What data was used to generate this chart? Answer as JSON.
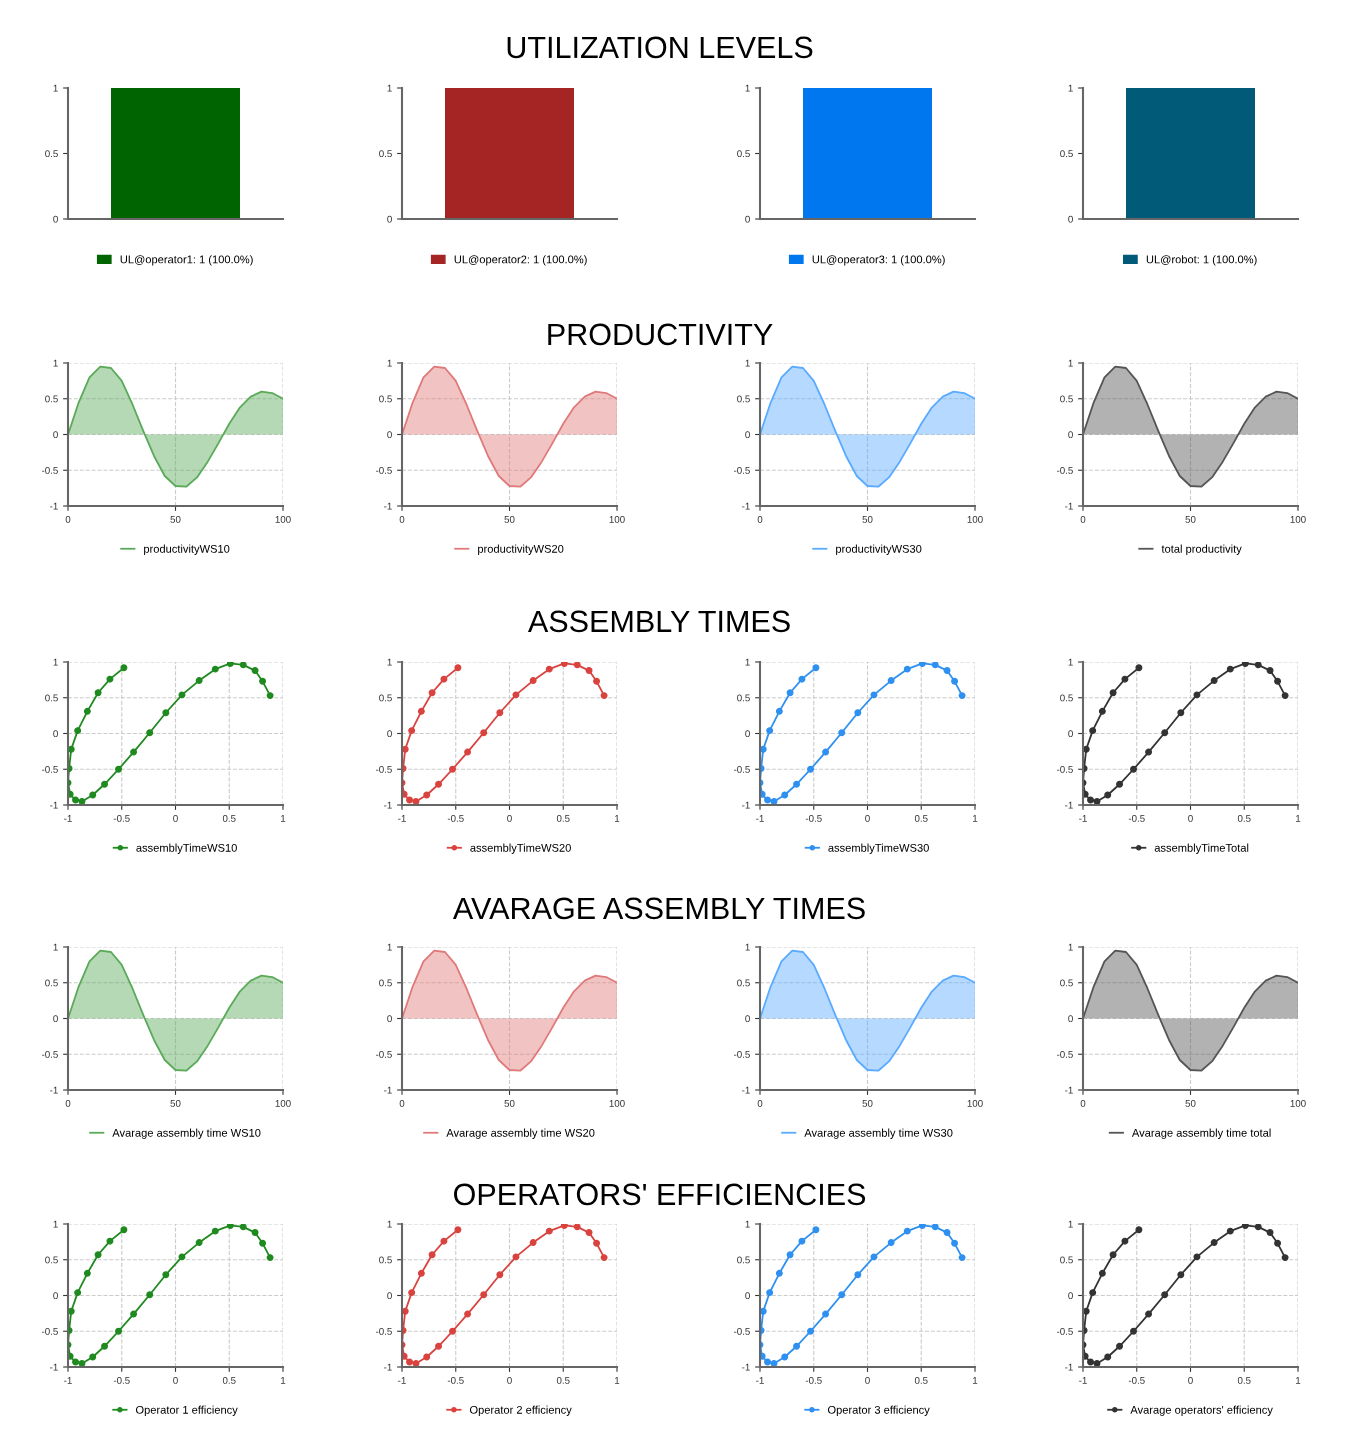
{
  "chart_data": [
    {
      "type": "bar",
      "categories": [
        null
      ],
      "ylim": [
        0,
        1
      ],
      "yticks": [
        0,
        0.5,
        1
      ],
      "grid": false,
      "legend": "bottom",
      "series": [
        {
          "name": "UL@operator1: 1 (100.0%)",
          "color": "#006400",
          "values": [
            1
          ]
        }
      ]
    },
    {
      "type": "bar",
      "categories": [
        null
      ],
      "ylim": [
        0,
        1
      ],
      "yticks": [
        0,
        0.5,
        1
      ],
      "grid": false,
      "legend": "bottom",
      "title": "UTILIZATION LEVELS",
      "series": [
        {
          "name": "UL@operator2: 1 (100.0%)",
          "color": "#a52525",
          "values": [
            1
          ]
        }
      ]
    },
    {
      "type": "bar",
      "categories": [
        null
      ],
      "ylim": [
        0,
        1
      ],
      "yticks": [
        0,
        0.5,
        1
      ],
      "grid": false,
      "legend": "bottom",
      "series": [
        {
          "name": "UL@operator3: 1 (100.0%)",
          "color": "#0077ee",
          "values": [
            1
          ]
        }
      ]
    },
    {
      "type": "bar",
      "categories": [
        null
      ],
      "ylim": [
        0,
        1
      ],
      "yticks": [
        0,
        0.5,
        1
      ],
      "grid": false,
      "legend": "bottom",
      "series": [
        {
          "name": "UL@robot: 1 (100.0%)",
          "color": "#005a78",
          "values": [
            1
          ]
        }
      ]
    },
    {
      "type": "area",
      "xlim": [
        0,
        100
      ],
      "xticks": [
        0,
        50,
        100
      ],
      "ylim": [
        -1,
        1
      ],
      "yticks": [
        -1,
        -0.5,
        0,
        0.5,
        1
      ],
      "grid": true,
      "legend": "bottom",
      "series": [
        {
          "name": "productivityWS10",
          "color": "#5aaa5a",
          "x": [
            0,
            5,
            10,
            15,
            20,
            25,
            30,
            35,
            40,
            45,
            50,
            55,
            60,
            65,
            70,
            75,
            80,
            85,
            90,
            95,
            100
          ],
          "values": [
            0,
            0.45,
            0.8,
            0.95,
            0.93,
            0.75,
            0.42,
            0.05,
            -0.3,
            -0.58,
            -0.72,
            -0.73,
            -0.6,
            -0.38,
            -0.12,
            0.15,
            0.38,
            0.53,
            0.6,
            0.58,
            0.5
          ]
        }
      ]
    },
    {
      "type": "area",
      "xlim": [
        0,
        100
      ],
      "xticks": [
        0,
        50,
        100
      ],
      "ylim": [
        -1,
        1
      ],
      "yticks": [
        -1,
        -0.5,
        0,
        0.5,
        1
      ],
      "grid": true,
      "legend": "bottom",
      "title": "PRODUCTIVITY",
      "series": [
        {
          "name": "productivityWS20",
          "color": "#e07a7a",
          "x": [
            0,
            5,
            10,
            15,
            20,
            25,
            30,
            35,
            40,
            45,
            50,
            55,
            60,
            65,
            70,
            75,
            80,
            85,
            90,
            95,
            100
          ],
          "values": [
            0,
            0.45,
            0.8,
            0.95,
            0.93,
            0.75,
            0.42,
            0.05,
            -0.3,
            -0.58,
            -0.72,
            -0.73,
            -0.6,
            -0.38,
            -0.12,
            0.15,
            0.38,
            0.53,
            0.6,
            0.58,
            0.5
          ]
        }
      ]
    },
    {
      "type": "area",
      "xlim": [
        0,
        100
      ],
      "xticks": [
        0,
        50,
        100
      ],
      "ylim": [
        -1,
        1
      ],
      "yticks": [
        -1,
        -0.5,
        0,
        0.5,
        1
      ],
      "grid": true,
      "legend": "bottom",
      "series": [
        {
          "name": "productivityWS30",
          "color": "#5aaaff",
          "x": [
            0,
            5,
            10,
            15,
            20,
            25,
            30,
            35,
            40,
            45,
            50,
            55,
            60,
            65,
            70,
            75,
            80,
            85,
            90,
            95,
            100
          ],
          "values": [
            0,
            0.45,
            0.8,
            0.95,
            0.93,
            0.75,
            0.42,
            0.05,
            -0.3,
            -0.58,
            -0.72,
            -0.73,
            -0.6,
            -0.38,
            -0.12,
            0.15,
            0.38,
            0.53,
            0.6,
            0.58,
            0.5
          ]
        }
      ]
    },
    {
      "type": "area",
      "xlim": [
        0,
        100
      ],
      "xticks": [
        0,
        50,
        100
      ],
      "ylim": [
        -1,
        1
      ],
      "yticks": [
        -1,
        -0.5,
        0,
        0.5,
        1
      ],
      "grid": true,
      "legend": "bottom",
      "series": [
        {
          "name": "total productivity",
          "color": "#555555",
          "x": [
            0,
            5,
            10,
            15,
            20,
            25,
            30,
            35,
            40,
            45,
            50,
            55,
            60,
            65,
            70,
            75,
            80,
            85,
            90,
            95,
            100
          ],
          "values": [
            0,
            0.45,
            0.8,
            0.95,
            0.93,
            0.75,
            0.42,
            0.05,
            -0.3,
            -0.58,
            -0.72,
            -0.73,
            -0.6,
            -0.38,
            -0.12,
            0.15,
            0.38,
            0.53,
            0.6,
            0.58,
            0.5
          ]
        }
      ]
    },
    {
      "type": "line",
      "xlim": [
        -1,
        1
      ],
      "xticks": [
        -1,
        -0.5,
        0,
        0.5,
        1
      ],
      "ylim": [
        -1,
        1
      ],
      "yticks": [
        -1,
        -0.5,
        0,
        0.5,
        1
      ],
      "grid": true,
      "legend": "bottom",
      "marker": "circle",
      "line_style": "solid",
      "series": [
        {
          "name": "assemblyTimeWS10",
          "color": "#1f8a1f",
          "x": [
            -0.48,
            -0.61,
            -0.72,
            -0.82,
            -0.91,
            -0.97,
            -0.99,
            -1.0,
            -0.98,
            -0.93,
            -0.87,
            -0.77,
            -0.66,
            -0.53,
            -0.39,
            -0.24,
            -0.09,
            0.06,
            0.22,
            0.37,
            0.51,
            0.63,
            0.74,
            0.81,
            0.88
          ],
          "values": [
            0.92,
            0.76,
            0.57,
            0.31,
            0.04,
            -0.22,
            -0.49,
            -0.69,
            -0.85,
            -0.93,
            -0.95,
            -0.86,
            -0.71,
            -0.5,
            -0.26,
            0.01,
            0.29,
            0.54,
            0.74,
            0.9,
            0.98,
            0.96,
            0.88,
            0.73,
            0.53
          ]
        }
      ]
    },
    {
      "type": "line",
      "xlim": [
        -1,
        1
      ],
      "xticks": [
        -1,
        -0.5,
        0,
        0.5,
        1
      ],
      "ylim": [
        -1,
        1
      ],
      "yticks": [
        -1,
        -0.5,
        0,
        0.5,
        1
      ],
      "grid": true,
      "legend": "bottom",
      "marker": "circle",
      "line_style": "solid",
      "title": "ASSEMBLY TIMES",
      "series": [
        {
          "name": "assemblyTimeWS20",
          "color": "#d9433f",
          "x": [
            -0.48,
            -0.61,
            -0.72,
            -0.82,
            -0.91,
            -0.97,
            -0.99,
            -1.0,
            -0.98,
            -0.93,
            -0.87,
            -0.77,
            -0.66,
            -0.53,
            -0.39,
            -0.24,
            -0.09,
            0.06,
            0.22,
            0.37,
            0.51,
            0.63,
            0.74,
            0.81,
            0.88
          ],
          "values": [
            0.92,
            0.76,
            0.57,
            0.31,
            0.04,
            -0.22,
            -0.49,
            -0.69,
            -0.85,
            -0.93,
            -0.95,
            -0.86,
            -0.71,
            -0.5,
            -0.26,
            0.01,
            0.29,
            0.54,
            0.74,
            0.9,
            0.98,
            0.96,
            0.88,
            0.73,
            0.53
          ]
        }
      ]
    },
    {
      "type": "line",
      "xlim": [
        -1,
        1
      ],
      "xticks": [
        -1,
        -0.5,
        0,
        0.5,
        1
      ],
      "ylim": [
        -1,
        1
      ],
      "yticks": [
        -1,
        -0.5,
        0,
        0.5,
        1
      ],
      "grid": true,
      "legend": "bottom",
      "marker": "circle",
      "line_style": "solid",
      "series": [
        {
          "name": "assemblyTimeWS30",
          "color": "#2e90f0",
          "x": [
            -0.48,
            -0.61,
            -0.72,
            -0.82,
            -0.91,
            -0.97,
            -0.99,
            -1.0,
            -0.98,
            -0.93,
            -0.87,
            -0.77,
            -0.66,
            -0.53,
            -0.39,
            -0.24,
            -0.09,
            0.06,
            0.22,
            0.37,
            0.51,
            0.63,
            0.74,
            0.81,
            0.88
          ],
          "values": [
            0.92,
            0.76,
            0.57,
            0.31,
            0.04,
            -0.22,
            -0.49,
            -0.69,
            -0.85,
            -0.93,
            -0.95,
            -0.86,
            -0.71,
            -0.5,
            -0.26,
            0.01,
            0.29,
            0.54,
            0.74,
            0.9,
            0.98,
            0.96,
            0.88,
            0.73,
            0.53
          ]
        }
      ]
    },
    {
      "type": "line",
      "xlim": [
        -1,
        1
      ],
      "xticks": [
        -1,
        -0.5,
        0,
        0.5,
        1
      ],
      "ylim": [
        -1,
        1
      ],
      "yticks": [
        -1,
        -0.5,
        0,
        0.5,
        1
      ],
      "grid": true,
      "legend": "bottom",
      "marker": "circle",
      "line_style": "solid",
      "series": [
        {
          "name": "assemblyTimeTotal",
          "color": "#333333",
          "x": [
            -0.48,
            -0.61,
            -0.72,
            -0.82,
            -0.91,
            -0.97,
            -0.99,
            -1.0,
            -0.98,
            -0.93,
            -0.87,
            -0.77,
            -0.66,
            -0.53,
            -0.39,
            -0.24,
            -0.09,
            0.06,
            0.22,
            0.37,
            0.51,
            0.63,
            0.74,
            0.81,
            0.88
          ],
          "values": [
            0.92,
            0.76,
            0.57,
            0.31,
            0.04,
            -0.22,
            -0.49,
            -0.69,
            -0.85,
            -0.93,
            -0.95,
            -0.86,
            -0.71,
            -0.5,
            -0.26,
            0.01,
            0.29,
            0.54,
            0.74,
            0.9,
            0.98,
            0.96,
            0.88,
            0.73,
            0.53
          ]
        }
      ]
    },
    {
      "type": "area",
      "xlim": [
        0,
        100
      ],
      "xticks": [
        0,
        50,
        100
      ],
      "ylim": [
        -1,
        1
      ],
      "yticks": [
        -1,
        -0.5,
        0,
        0.5,
        1
      ],
      "grid": true,
      "legend": "bottom",
      "series": [
        {
          "name": "Avarage assembly time WS10",
          "color": "#5aaa5a",
          "x": [
            0,
            5,
            10,
            15,
            20,
            25,
            30,
            35,
            40,
            45,
            50,
            55,
            60,
            65,
            70,
            75,
            80,
            85,
            90,
            95,
            100
          ],
          "values": [
            0,
            0.45,
            0.8,
            0.95,
            0.93,
            0.75,
            0.42,
            0.05,
            -0.3,
            -0.58,
            -0.72,
            -0.73,
            -0.6,
            -0.38,
            -0.12,
            0.15,
            0.38,
            0.53,
            0.6,
            0.58,
            0.5
          ]
        }
      ]
    },
    {
      "type": "area",
      "xlim": [
        0,
        100
      ],
      "xticks": [
        0,
        50,
        100
      ],
      "ylim": [
        -1,
        1
      ],
      "yticks": [
        -1,
        -0.5,
        0,
        0.5,
        1
      ],
      "grid": true,
      "legend": "bottom",
      "title": "AVARAGE ASSEMBLY TIMES",
      "series": [
        {
          "name": "Avarage assembly time WS20",
          "color": "#e07a7a",
          "x": [
            0,
            5,
            10,
            15,
            20,
            25,
            30,
            35,
            40,
            45,
            50,
            55,
            60,
            65,
            70,
            75,
            80,
            85,
            90,
            95,
            100
          ],
          "values": [
            0,
            0.45,
            0.8,
            0.95,
            0.93,
            0.75,
            0.42,
            0.05,
            -0.3,
            -0.58,
            -0.72,
            -0.73,
            -0.6,
            -0.38,
            -0.12,
            0.15,
            0.38,
            0.53,
            0.6,
            0.58,
            0.5
          ]
        }
      ]
    },
    {
      "type": "area",
      "xlim": [
        0,
        100
      ],
      "xticks": [
        0,
        50,
        100
      ],
      "ylim": [
        -1,
        1
      ],
      "yticks": [
        -1,
        -0.5,
        0,
        0.5,
        1
      ],
      "grid": true,
      "legend": "bottom",
      "series": [
        {
          "name": "Avarage assembly time WS30",
          "color": "#5aaaff",
          "x": [
            0,
            5,
            10,
            15,
            20,
            25,
            30,
            35,
            40,
            45,
            50,
            55,
            60,
            65,
            70,
            75,
            80,
            85,
            90,
            95,
            100
          ],
          "values": [
            0,
            0.45,
            0.8,
            0.95,
            0.93,
            0.75,
            0.42,
            0.05,
            -0.3,
            -0.58,
            -0.72,
            -0.73,
            -0.6,
            -0.38,
            -0.12,
            0.15,
            0.38,
            0.53,
            0.6,
            0.58,
            0.5
          ]
        }
      ]
    },
    {
      "type": "area",
      "xlim": [
        0,
        100
      ],
      "xticks": [
        0,
        50,
        100
      ],
      "ylim": [
        -1,
        1
      ],
      "yticks": [
        -1,
        -0.5,
        0,
        0.5,
        1
      ],
      "grid": true,
      "legend": "bottom",
      "series": [
        {
          "name": "Avarage assembly time total",
          "color": "#555555",
          "x": [
            0,
            5,
            10,
            15,
            20,
            25,
            30,
            35,
            40,
            45,
            50,
            55,
            60,
            65,
            70,
            75,
            80,
            85,
            90,
            95,
            100
          ],
          "values": [
            0,
            0.45,
            0.8,
            0.95,
            0.93,
            0.75,
            0.42,
            0.05,
            -0.3,
            -0.58,
            -0.72,
            -0.73,
            -0.6,
            -0.38,
            -0.12,
            0.15,
            0.38,
            0.53,
            0.6,
            0.58,
            0.5
          ]
        }
      ]
    },
    {
      "type": "line",
      "xlim": [
        -1,
        1
      ],
      "xticks": [
        -1,
        -0.5,
        0,
        0.5,
        1
      ],
      "ylim": [
        -1,
        1
      ],
      "yticks": [
        -1,
        -0.5,
        0,
        0.5,
        1
      ],
      "grid": true,
      "legend": "bottom",
      "marker": "circle",
      "line_style": "solid",
      "series": [
        {
          "name": "Operator 1 efficiency",
          "color": "#1f8a1f",
          "x": [
            -0.48,
            -0.61,
            -0.72,
            -0.82,
            -0.91,
            -0.97,
            -0.99,
            -1.0,
            -0.98,
            -0.93,
            -0.87,
            -0.77,
            -0.66,
            -0.53,
            -0.39,
            -0.24,
            -0.09,
            0.06,
            0.22,
            0.37,
            0.51,
            0.63,
            0.74,
            0.81,
            0.88
          ],
          "values": [
            0.92,
            0.76,
            0.57,
            0.31,
            0.04,
            -0.22,
            -0.49,
            -0.69,
            -0.85,
            -0.93,
            -0.95,
            -0.86,
            -0.71,
            -0.5,
            -0.26,
            0.01,
            0.29,
            0.54,
            0.74,
            0.9,
            0.98,
            0.96,
            0.88,
            0.73,
            0.53
          ]
        }
      ]
    },
    {
      "type": "line",
      "xlim": [
        -1,
        1
      ],
      "xticks": [
        -1,
        -0.5,
        0,
        0.5,
        1
      ],
      "ylim": [
        -1,
        1
      ],
      "yticks": [
        -1,
        -0.5,
        0,
        0.5,
        1
      ],
      "grid": true,
      "legend": "bottom",
      "marker": "circle",
      "line_style": "solid",
      "title": "OPERATORS' EFFICIENCIES",
      "series": [
        {
          "name": "Operator 2 efficiency",
          "color": "#d9433f",
          "x": [
            -0.48,
            -0.61,
            -0.72,
            -0.82,
            -0.91,
            -0.97,
            -0.99,
            -1.0,
            -0.98,
            -0.93,
            -0.87,
            -0.77,
            -0.66,
            -0.53,
            -0.39,
            -0.24,
            -0.09,
            0.06,
            0.22,
            0.37,
            0.51,
            0.63,
            0.74,
            0.81,
            0.88
          ],
          "values": [
            0.92,
            0.76,
            0.57,
            0.31,
            0.04,
            -0.22,
            -0.49,
            -0.69,
            -0.85,
            -0.93,
            -0.95,
            -0.86,
            -0.71,
            -0.5,
            -0.26,
            0.01,
            0.29,
            0.54,
            0.74,
            0.9,
            0.98,
            0.96,
            0.88,
            0.73,
            0.53
          ]
        }
      ]
    },
    {
      "type": "line",
      "xlim": [
        -1,
        1
      ],
      "xticks": [
        -1,
        -0.5,
        0,
        0.5,
        1
      ],
      "ylim": [
        -1,
        1
      ],
      "yticks": [
        -1,
        -0.5,
        0,
        0.5,
        1
      ],
      "grid": true,
      "legend": "bottom",
      "marker": "circle",
      "line_style": "solid",
      "series": [
        {
          "name": "Operator 3 efficiency",
          "color": "#2e90f0",
          "x": [
            -0.48,
            -0.61,
            -0.72,
            -0.82,
            -0.91,
            -0.97,
            -0.99,
            -1.0,
            -0.98,
            -0.93,
            -0.87,
            -0.77,
            -0.66,
            -0.53,
            -0.39,
            -0.24,
            -0.09,
            0.06,
            0.22,
            0.37,
            0.51,
            0.63,
            0.74,
            0.81,
            0.88
          ],
          "values": [
            0.92,
            0.76,
            0.57,
            0.31,
            0.04,
            -0.22,
            -0.49,
            -0.69,
            -0.85,
            -0.93,
            -0.95,
            -0.86,
            -0.71,
            -0.5,
            -0.26,
            0.01,
            0.29,
            0.54,
            0.74,
            0.9,
            0.98,
            0.96,
            0.88,
            0.73,
            0.53
          ]
        }
      ]
    },
    {
      "type": "line",
      "xlim": [
        -1,
        1
      ],
      "xticks": [
        -1,
        -0.5,
        0,
        0.5,
        1
      ],
      "ylim": [
        -1,
        1
      ],
      "yticks": [
        -1,
        -0.5,
        0,
        0.5,
        1
      ],
      "grid": true,
      "legend": "bottom",
      "marker": "circle",
      "line_style": "solid",
      "series": [
        {
          "name": "Avarage operators' efficiency",
          "color": "#333333",
          "x": [
            -0.48,
            -0.61,
            -0.72,
            -0.82,
            -0.91,
            -0.97,
            -0.99,
            -1.0,
            -0.98,
            -0.93,
            -0.87,
            -0.77,
            -0.66,
            -0.53,
            -0.39,
            -0.24,
            -0.09,
            0.06,
            0.22,
            0.37,
            0.51,
            0.63,
            0.74,
            0.81,
            0.88
          ],
          "values": [
            0.92,
            0.76,
            0.57,
            0.31,
            0.04,
            -0.22,
            -0.49,
            -0.69,
            -0.85,
            -0.93,
            -0.95,
            -0.86,
            -0.71,
            -0.5,
            -0.26,
            0.01,
            0.29,
            0.54,
            0.74,
            0.9,
            0.98,
            0.96,
            0.88,
            0.73,
            0.53
          ]
        }
      ]
    }
  ]
}
